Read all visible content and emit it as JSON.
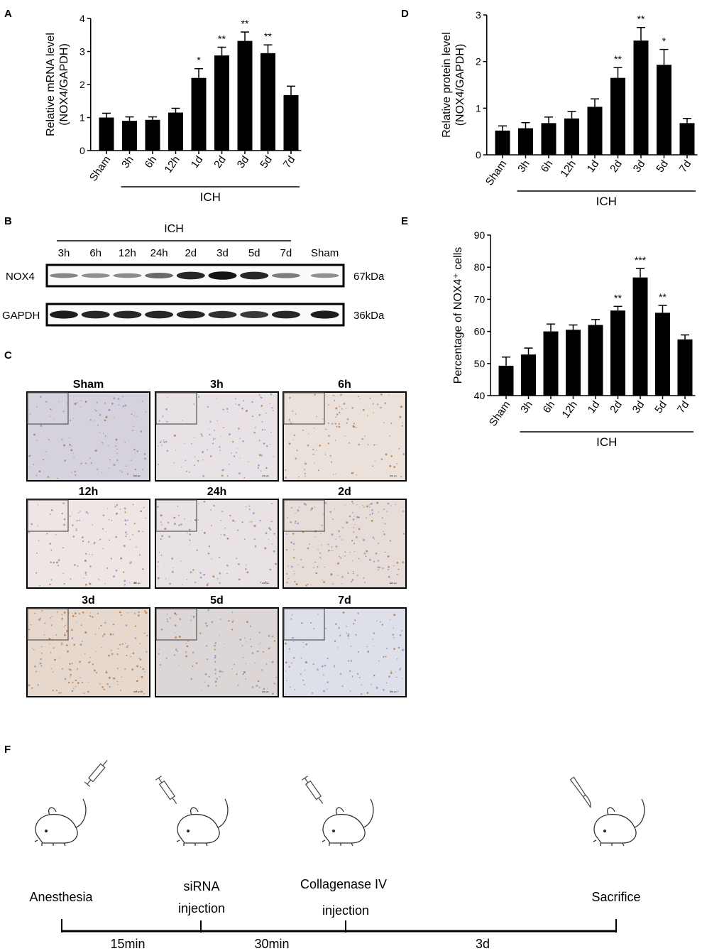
{
  "panels": {
    "A": "A",
    "B": "B",
    "C": "C",
    "D": "D",
    "E": "E",
    "F": "F"
  },
  "chart_data": [
    {
      "panel": "A",
      "type": "bar",
      "categories": [
        "Sham",
        "3h",
        "6h",
        "12h",
        "1d",
        "2d",
        "3d",
        "5d",
        "7d"
      ],
      "values": [
        1.0,
        0.9,
        0.93,
        1.15,
        2.2,
        2.88,
        3.32,
        2.95,
        1.68
      ],
      "errors": [
        0.13,
        0.12,
        0.09,
        0.13,
        0.28,
        0.25,
        0.27,
        0.25,
        0.27
      ],
      "significance": [
        "",
        "",
        "",
        "",
        "*",
        "**",
        "**",
        "**",
        ""
      ],
      "ylabel": "Relative mRNA level",
      "ylabel2": "(NOX4/GAPDH)",
      "ylim": [
        0,
        4
      ],
      "yticks": [
        0,
        1,
        2,
        3,
        4
      ],
      "group_label": "ICH",
      "group_span": [
        "3h",
        "7d"
      ]
    },
    {
      "panel": "D",
      "type": "bar",
      "categories": [
        "Sham",
        "3h",
        "6h",
        "12h",
        "1d",
        "2d",
        "3d",
        "5d",
        "7d"
      ],
      "values": [
        0.52,
        0.57,
        0.68,
        0.78,
        1.03,
        1.65,
        2.45,
        1.93,
        0.68
      ],
      "errors": [
        0.1,
        0.12,
        0.13,
        0.15,
        0.17,
        0.22,
        0.28,
        0.33,
        0.1
      ],
      "significance": [
        "",
        "",
        "",
        "",
        "",
        "**",
        "**",
        "*",
        ""
      ],
      "ylabel": "Relative protein level",
      "ylabel2": "(NOX4/GAPDH)",
      "ylim": [
        0,
        3
      ],
      "yticks": [
        0,
        1,
        2,
        3
      ],
      "group_label": "ICH",
      "group_span": [
        "3h",
        "7d"
      ]
    },
    {
      "panel": "E",
      "type": "bar",
      "categories": [
        "Sham",
        "3h",
        "6h",
        "12h",
        "1d",
        "2d",
        "3d",
        "5d",
        "7d"
      ],
      "values": [
        49.3,
        52.8,
        60.0,
        60.5,
        62.0,
        66.5,
        76.8,
        65.8,
        57.5
      ],
      "errors": [
        2.7,
        2.0,
        2.3,
        1.5,
        1.7,
        1.3,
        2.8,
        2.3,
        1.4
      ],
      "significance": [
        "",
        "",
        "",
        "",
        "",
        "**",
        "***",
        "**",
        ""
      ],
      "ylabel": "Percentage of NOX4⁺ cells",
      "ylim": [
        40,
        90
      ],
      "yticks": [
        40,
        50,
        60,
        70,
        80,
        90
      ],
      "group_label": "ICH",
      "group_span": [
        "3h",
        "7d"
      ]
    }
  ],
  "blot": {
    "group_label": "ICH",
    "lanes": [
      "3h",
      "6h",
      "12h",
      "24h",
      "2d",
      "3d",
      "5d",
      "7d",
      "Sham"
    ],
    "rows": [
      {
        "label": "NOX4",
        "size": "67kDa",
        "intensity": [
          0.35,
          0.3,
          0.32,
          0.5,
          0.85,
          0.95,
          0.85,
          0.4,
          0.3
        ]
      },
      {
        "label": "GAPDH",
        "size": "36kDa",
        "intensity": [
          0.9,
          0.85,
          0.85,
          0.85,
          0.85,
          0.8,
          0.75,
          0.85,
          0.9
        ]
      }
    ]
  },
  "ihc": {
    "titles": [
      "Sham",
      "3h",
      "6h",
      "12h",
      "24h",
      "2d",
      "3d",
      "5d",
      "7d"
    ],
    "scale_text": "100 µm",
    "colors": [
      "#d5d2de",
      "#e8e2e6",
      "#eae2da",
      "#ede6e4",
      "#e9e2e4",
      "#e6dcd8",
      "#e6d8cc",
      "#ddd6d6",
      "#dddfe9"
    ]
  },
  "timeline": {
    "events": [
      "Anesthesia",
      "siRNA",
      "injection",
      "Collagenase IV",
      "injection",
      "Sacrifice"
    ],
    "intervals": [
      "15min",
      "30min",
      "3d"
    ]
  }
}
